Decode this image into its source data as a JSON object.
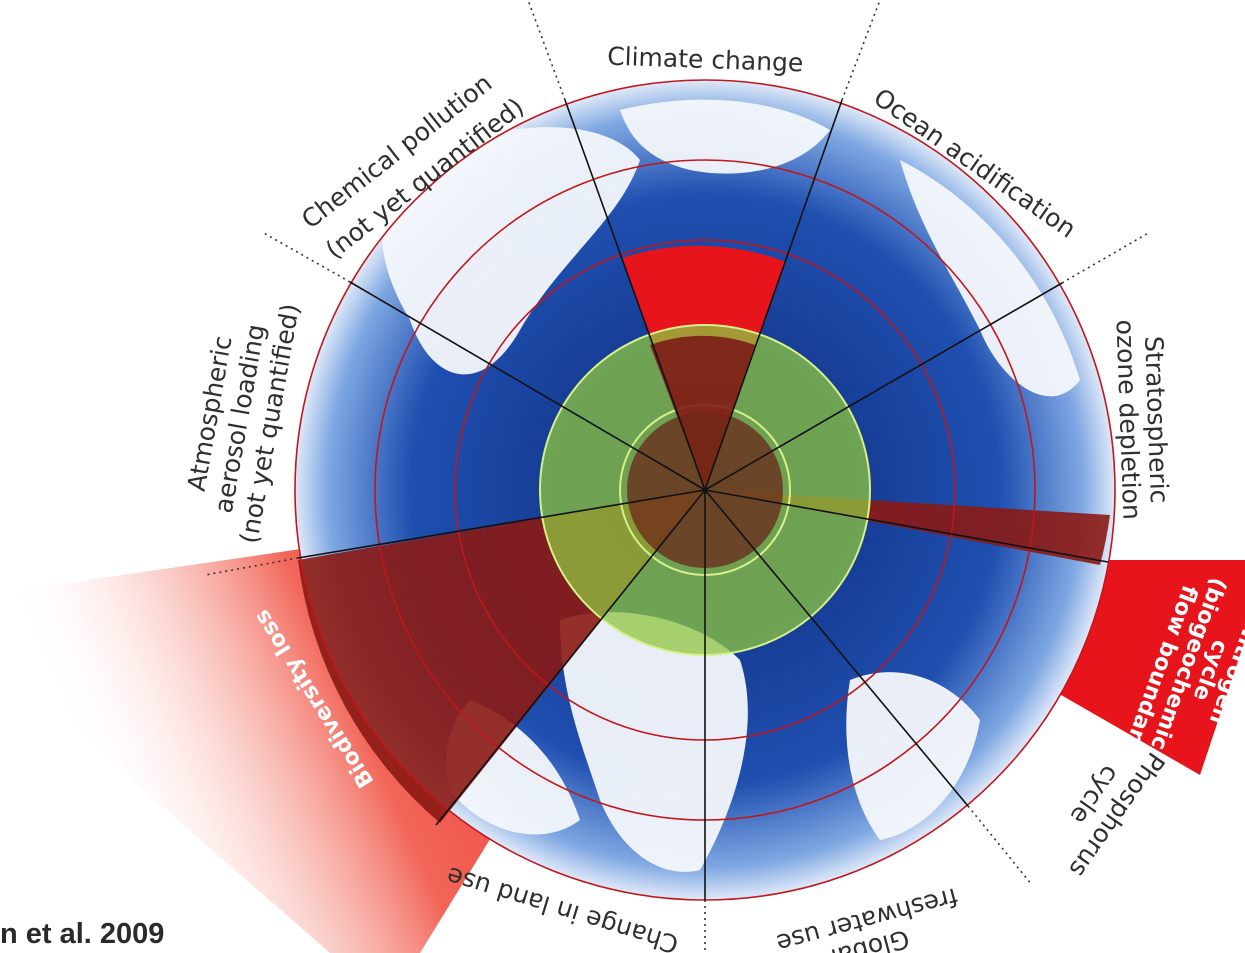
{
  "diagram": {
    "citation": "n et al. 2009",
    "colors": {
      "safe_zone": "#8dc63f",
      "exceeded": "#e8141c",
      "boundary_ring": "#c0171c",
      "ocean": "#1f4fb0"
    },
    "boundaries": [
      {
        "id": "climate",
        "label_lines": [
          "Climate change"
        ],
        "status": "exceeded"
      },
      {
        "id": "ocean",
        "label_lines": [
          "Ocean acidification"
        ],
        "status": "safe"
      },
      {
        "id": "ozone",
        "label_lines": [
          "Stratospheric",
          "ozone depletion"
        ],
        "status": "safe"
      },
      {
        "id": "nitrogen",
        "label_lines": [
          "Nitrogen",
          "cycle",
          "(biogeochemical",
          "flow boundary)"
        ],
        "status": "exceeded"
      },
      {
        "id": "phosphorus",
        "label_lines": [
          "Phosphorus",
          "cycle"
        ],
        "status": "safe"
      },
      {
        "id": "freshwater",
        "label_lines": [
          "Global",
          "freshwater use"
        ],
        "status": "safe"
      },
      {
        "id": "landuse",
        "label_lines": [
          "Change in land use"
        ],
        "status": "safe"
      },
      {
        "id": "biodiversity",
        "label_lines": [
          "Biodiversity loss"
        ],
        "status": "exceeded"
      },
      {
        "id": "aerosol",
        "label_lines": [
          "Atmospheric",
          "aerosol loading",
          "(not yet quantified)"
        ],
        "status": "not-quantified"
      },
      {
        "id": "chemical",
        "label_lines": [
          "Chemical pollution",
          "(not yet quantified)"
        ],
        "status": "not-quantified"
      }
    ]
  }
}
